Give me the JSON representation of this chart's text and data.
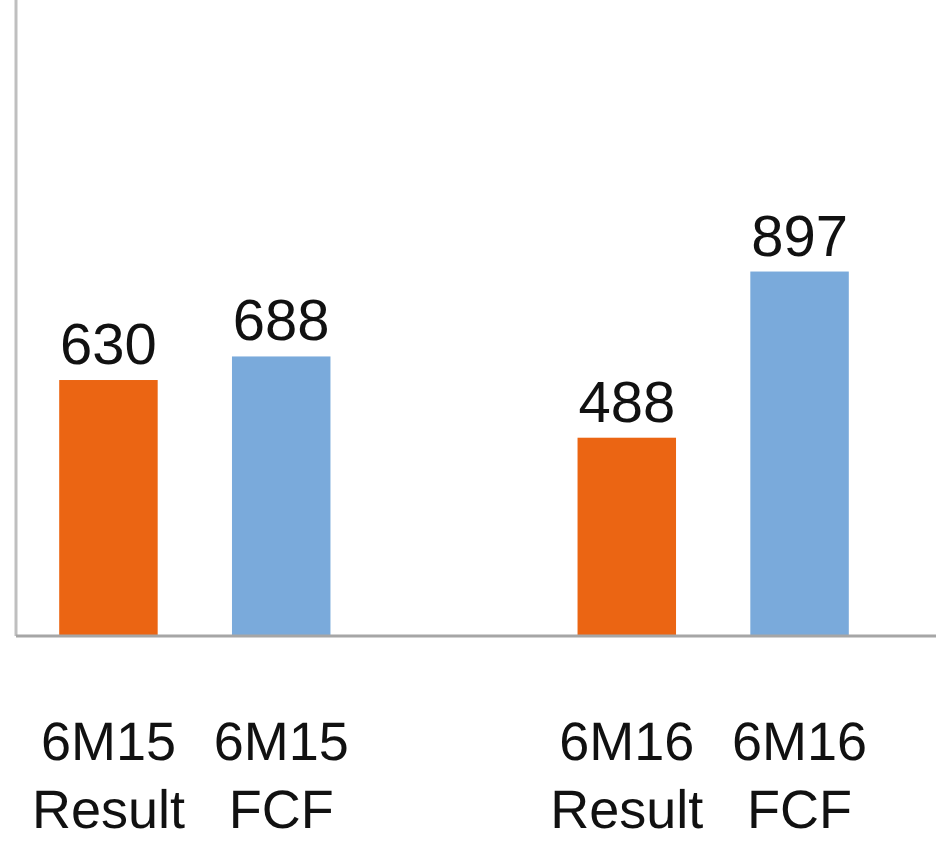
{
  "chart_data": {
    "type": "bar",
    "categories": [
      "6M15 Result",
      "6M15 FCF",
      null,
      "6M16 Result",
      "6M16 FCF"
    ],
    "values": [
      630,
      688,
      null,
      488,
      897
    ],
    "colors": [
      "#eb6513",
      "#7aaadb",
      null,
      "#eb6513",
      "#7aaadb"
    ],
    "data_labels": true
  }
}
